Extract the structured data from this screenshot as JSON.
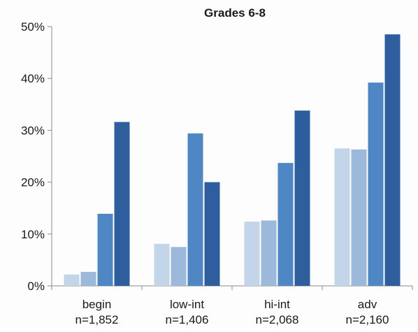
{
  "chart_data": {
    "type": "bar",
    "title": "Grades 6-8",
    "categories": [
      "begin",
      "low-int",
      "hi-int",
      "adv"
    ],
    "category_counts": [
      "n=1,852",
      "n=1,406",
      "n=2,068",
      "n=2,160"
    ],
    "series": [
      {
        "values": [
          2.2,
          8.1,
          12.4,
          26.5
        ]
      },
      {
        "values": [
          2.7,
          7.5,
          12.6,
          26.3
        ]
      },
      {
        "values": [
          13.9,
          29.4,
          23.7,
          39.2
        ]
      },
      {
        "values": [
          31.6,
          20.0,
          33.8,
          48.5
        ]
      }
    ],
    "series_colors": [
      "#c3d5e9",
      "#9cb8db",
      "#4f86c4",
      "#2e5e9e"
    ],
    "y_ticks": [
      0,
      10,
      20,
      30,
      40,
      50
    ],
    "y_tick_labels": [
      "0%",
      "10%",
      "20%",
      "30%",
      "40%",
      "50%"
    ],
    "ylim": [
      0,
      50
    ],
    "xlabel": "",
    "ylabel": "",
    "grid": false,
    "legend": "none"
  }
}
